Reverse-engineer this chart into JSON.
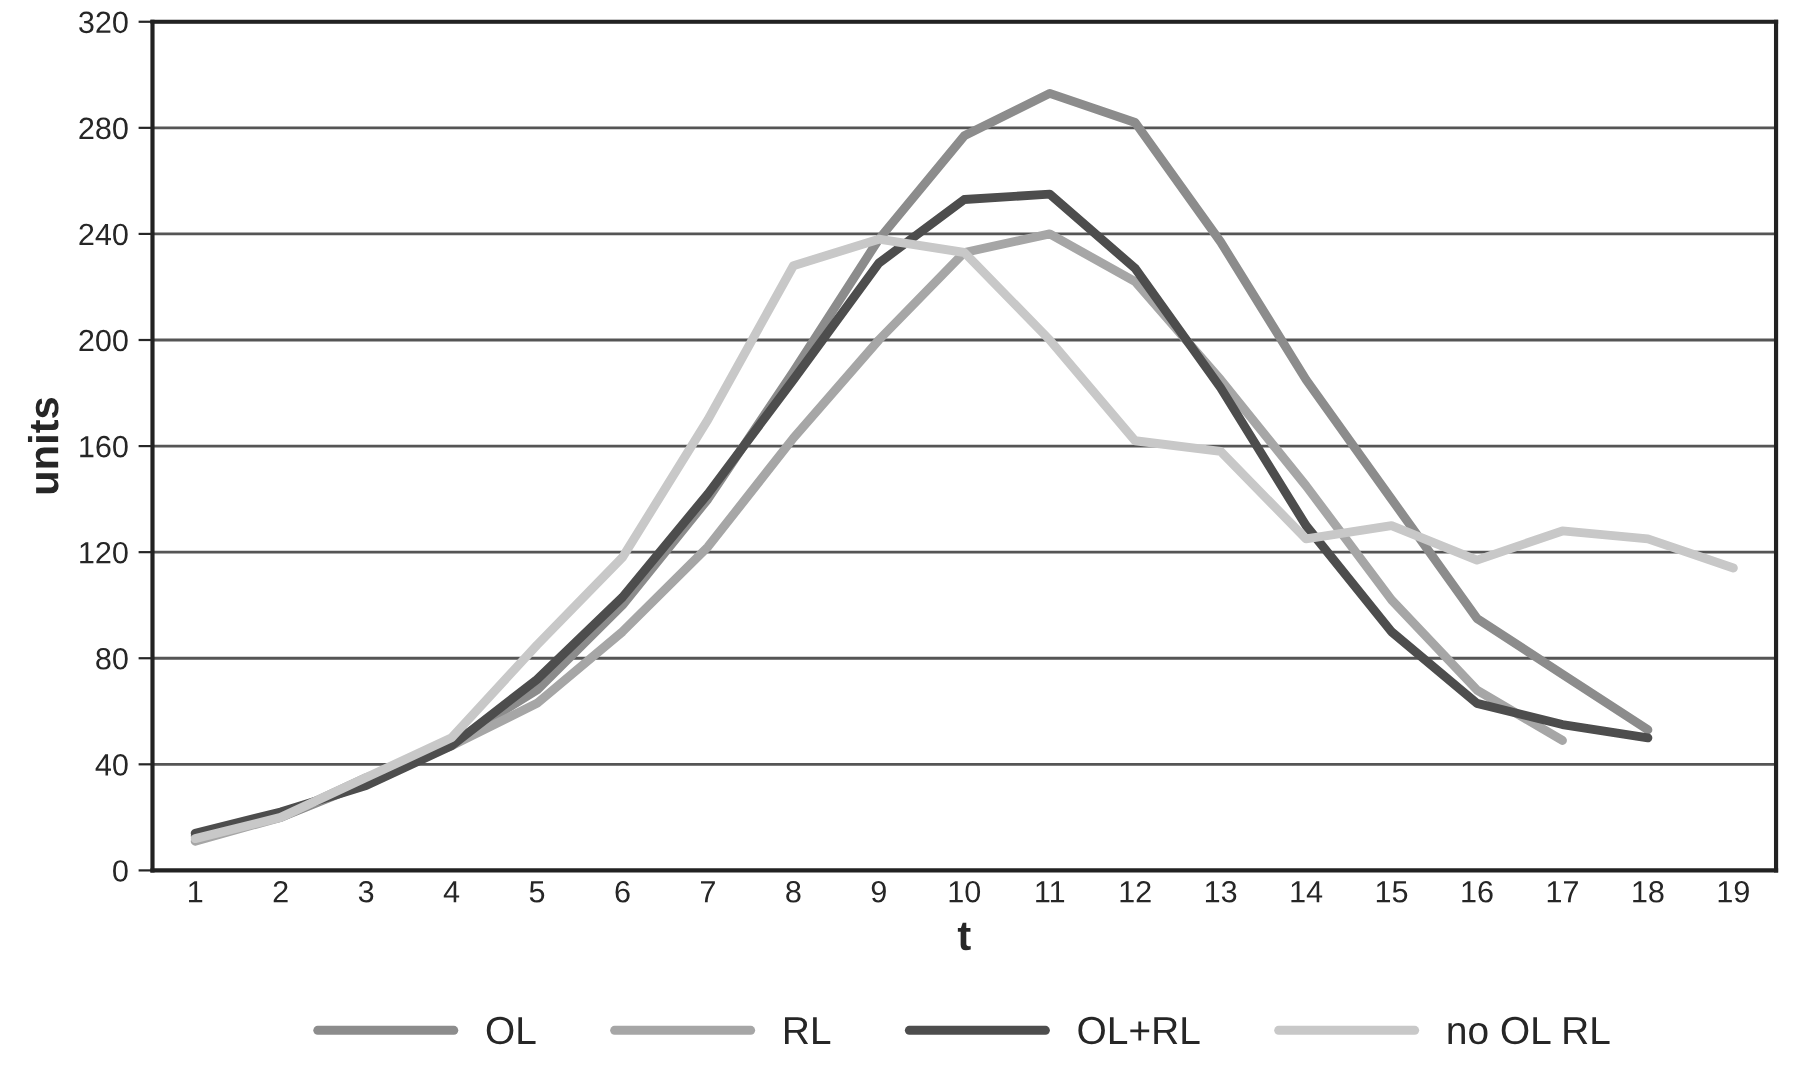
{
  "chart_data": {
    "type": "line",
    "xlabel": "t",
    "ylabel": "units",
    "categories": [
      "1",
      "2",
      "3",
      "4",
      "5",
      "6",
      "7",
      "8",
      "9",
      "10",
      "11",
      "12",
      "13",
      "14",
      "15",
      "16",
      "17",
      "18",
      "19"
    ],
    "series": [
      {
        "name": "OL",
        "color": "#8c8c8c",
        "values": [
          13,
          20,
          33,
          48,
          68,
          100,
          140,
          188,
          238,
          277,
          293,
          282,
          237,
          185,
          140,
          95,
          74,
          53,
          null
        ]
      },
      {
        "name": "RL",
        "color": "#a6a6a6",
        "values": [
          11,
          20,
          35,
          47,
          63,
          90,
          122,
          163,
          200,
          233,
          240,
          222,
          185,
          145,
          102,
          68,
          49,
          null,
          null
        ]
      },
      {
        "name": "OL+RL",
        "color": "#4d4d4d",
        "values": [
          14,
          22,
          32,
          47,
          72,
          103,
          142,
          185,
          229,
          253,
          255,
          227,
          182,
          130,
          90,
          63,
          55,
          50,
          null
        ]
      },
      {
        "name": "no OL RL",
        "color": "#c8c8c8",
        "values": [
          12,
          20,
          35,
          50,
          85,
          118,
          170,
          228,
          238,
          233,
          200,
          162,
          158,
          125,
          130,
          117,
          128,
          125,
          114
        ]
      }
    ],
    "ylim": [
      0,
      320
    ],
    "yticks": [
      0,
      40,
      80,
      120,
      160,
      200,
      240,
      280,
      320
    ],
    "grid": "y",
    "legend": "bottom",
    "marker": "none",
    "line_style": "solid"
  }
}
